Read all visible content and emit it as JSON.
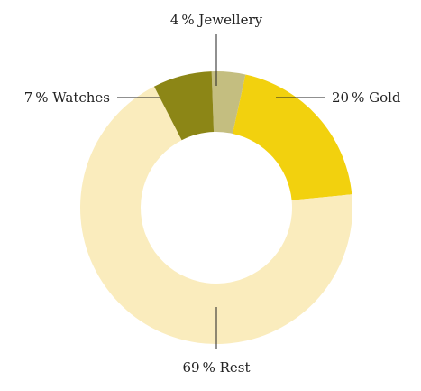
{
  "chart_data": {
    "type": "pie",
    "style": "donut",
    "slices": [
      {
        "key": "jewellery",
        "label": "4 % Jewellery",
        "value": 4,
        "color": "#c4be80"
      },
      {
        "key": "gold",
        "label": "20 % Gold",
        "value": 20,
        "color": "#f2d10e"
      },
      {
        "key": "rest",
        "label": "69 % Rest",
        "value": 69,
        "color": "#faecbd"
      },
      {
        "key": "watches",
        "label": "7 % Watches",
        "value": 7,
        "color": "#8c8616"
      }
    ],
    "legend": "none"
  }
}
